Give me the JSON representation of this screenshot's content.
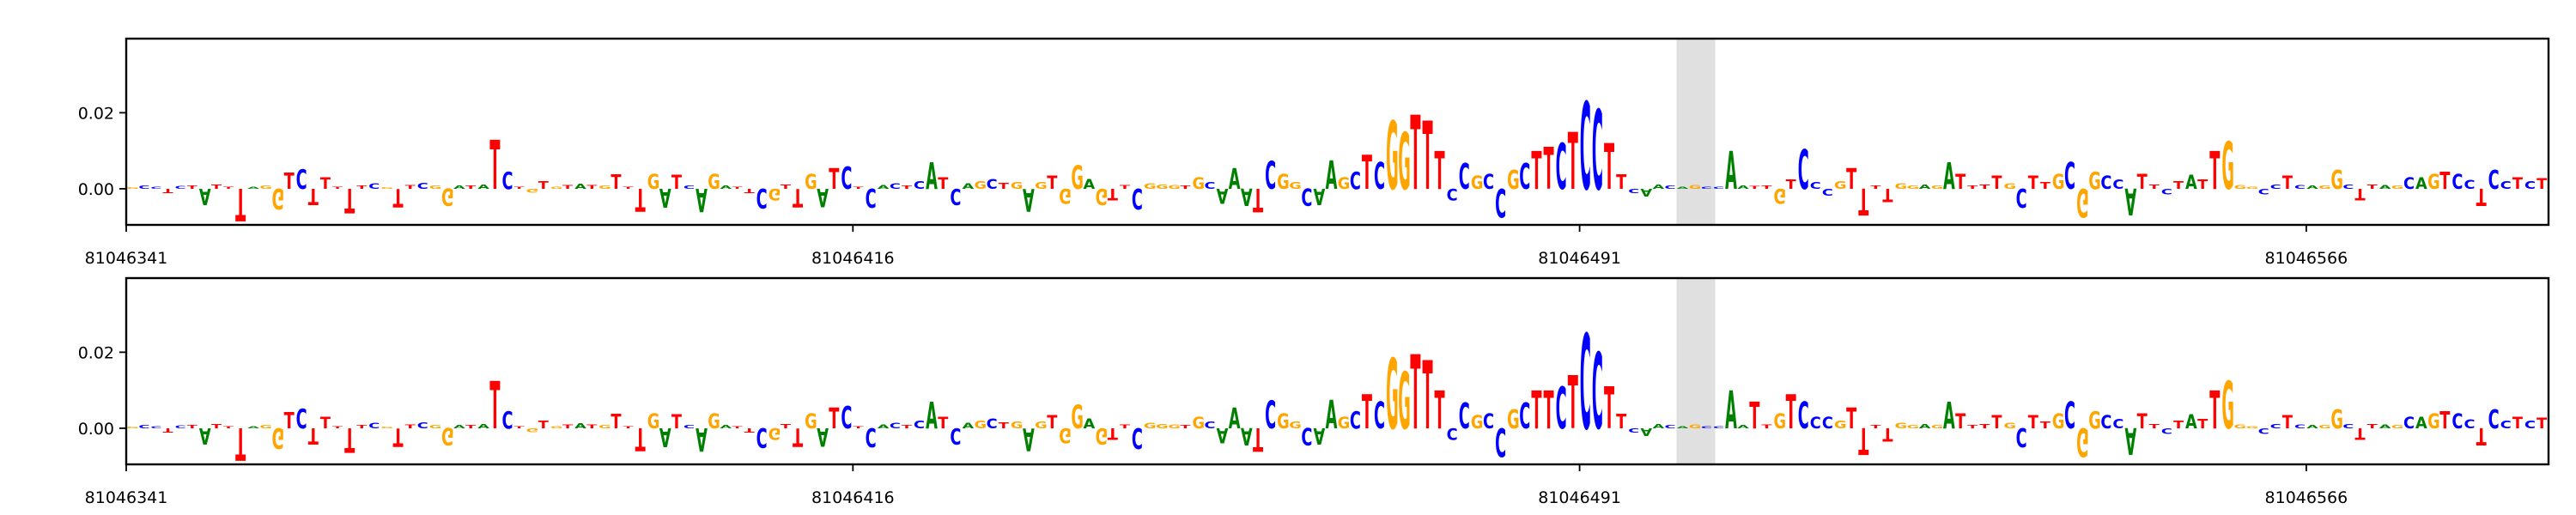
{
  "chart_data": [
    {
      "type": "sequence-logo",
      "panel": "top",
      "ylim": [
        -0.0095,
        0.0395
      ],
      "y_ticks": [
        0.0,
        0.02
      ],
      "y_tick_labels": [
        "0.00",
        "0.02"
      ],
      "x_range": [
        81046341,
        81046591
      ],
      "x_ticks": [
        81046341,
        81046416,
        81046491,
        81046566
      ],
      "x_tick_labels": [
        "81046341",
        "81046416",
        "81046491",
        "81046566"
      ],
      "highlight_range": [
        81046501,
        81046505
      ],
      "grid": false,
      "sequence": "GCCTCTATTTAGGTCTTTTTCGTTCGGATATCTGTGTATGTTTGATCAGATTCGTTGATCTCACTCATCAGCTGAGTGGAGTTCGGGTGCAAATCGGCAAGCTCGGTTTCCGCCGCTTCTCCTTCAACAGCCAATTGTCCCGTTTTGGAGATTTTGCTTGCGGCCATTCTATTGGGCCTCAGGCTTAGCAGTCCTCCTCT",
      "letter_heights": [
        0.0004,
        0.0008,
        0.0005,
        -0.0012,
        0.0007,
        0.0009,
        -0.0042,
        0.0011,
        0.0006,
        -0.0085,
        0.0006,
        0.0008,
        -0.0055,
        0.0042,
        0.0052,
        -0.0043,
        0.003,
        0.0006,
        -0.0065,
        0.0009,
        0.0014,
        0.0004,
        -0.0048,
        0.001,
        0.0016,
        0.0008,
        -0.0046,
        0.0008,
        0.0009,
        0.0012,
        0.013,
        0.0045,
        0.0006,
        -0.001,
        0.002,
        0.0006,
        0.001,
        0.0013,
        0.001,
        0.0008,
        0.0038,
        0.0006,
        -0.006,
        0.004,
        -0.005,
        0.0036,
        0.0009,
        -0.0062,
        0.004,
        0.0008,
        0.0006,
        -0.0011,
        -0.0052,
        -0.003,
        0.0012,
        -0.0048,
        0.004,
        -0.0048,
        0.0055,
        0.0058,
        0.0006,
        -0.005,
        0.001,
        0.0015,
        0.0008,
        0.0021,
        0.007,
        0.003,
        -0.0042,
        0.0015,
        0.002,
        0.0026,
        0.0016,
        0.0018,
        -0.006,
        0.0017,
        0.0035,
        -0.004,
        0.0062,
        0.0027,
        -0.0042,
        -0.003,
        0.001,
        -0.0054,
        0.0015,
        0.0012,
        0.001,
        0.0008,
        0.003,
        0.0018,
        -0.004,
        0.0054,
        -0.0045,
        -0.0062,
        0.0074,
        0.004,
        0.0017,
        -0.0046,
        -0.0043,
        0.0075,
        0.003,
        0.0045,
        0.009,
        0.007,
        0.018,
        0.015,
        0.0195,
        0.018,
        0.01,
        -0.003,
        0.0068,
        0.0035,
        0.004,
        -0.0075,
        0.005,
        0.0068,
        0.01,
        0.011,
        0.012,
        0.015,
        0.023,
        0.021,
        0.012,
        0.0038,
        -0.0011,
        -0.002,
        0.0012,
        0.0008,
        0.0006,
        0.001,
        0.0005,
        0.0006,
        0.01,
        0.0008,
        0.0007,
        0.0008,
        -0.004,
        0.0025,
        0.0105,
        0.0018,
        -0.0018,
        0.002,
        0.0055,
        -0.007,
        0.0009,
        -0.0035,
        0.0015,
        0.0008,
        0.0012,
        0.0009,
        0.007,
        0.004,
        0.0009,
        0.0012,
        0.0035,
        0.0015,
        -0.005,
        0.0035,
        0.0018,
        0.004,
        0.007,
        -0.0075,
        0.0045,
        0.0035,
        0.0025,
        -0.007,
        0.004,
        0.0012,
        -0.0015,
        0.002,
        0.0036,
        0.0025,
        0.01,
        0.0125,
        0.001,
        0.0005,
        -0.0015,
        0.0011,
        0.0035,
        0.001,
        0.0008,
        0.0009,
        0.005,
        0.0012,
        -0.003,
        0.0011,
        0.001,
        0.0008,
        0.003,
        0.003,
        0.004,
        0.0045,
        0.004,
        0.0024,
        -0.0045,
        0.005,
        0.002,
        0.003,
        0.002,
        0.0028,
        0.003,
        -0.005
      ],
      "colors": {
        "A": "#008000",
        "C": "#0000ff",
        "G": "#ffa500",
        "T": "#ff0000"
      }
    },
    {
      "type": "sequence-logo",
      "panel": "bottom",
      "ylim": [
        -0.0095,
        0.0395
      ],
      "y_ticks": [
        0.0,
        0.02
      ],
      "y_tick_labels": [
        "0.00",
        "0.02"
      ],
      "x_range": [
        81046341,
        81046591
      ],
      "x_ticks": [
        81046341,
        81046416,
        81046491,
        81046566
      ],
      "x_tick_labels": [
        "81046341",
        "81046416",
        "81046491",
        "81046566"
      ],
      "highlight_range": [
        81046501,
        81046505
      ],
      "grid": false,
      "sequence": "GCCTCTATTTAGGTCTTTTTCGTTCGGATATCTGTGTATGTTTGATCAGATTCGTTGATCTCACTCATCAGCTGAGTGGAGTTCGGGTGCAAATCGGCAAGCTCGGTTTCCGCCGCTTCTCCTTCAACAGCCAATTGTCCCGTTTTGGAGATTTTGCTTGCGGCCATTCTATTGGGCCTCAGGCTTAGCAGTCCTCCTCT",
      "letter_heights": [
        0.0004,
        0.0008,
        0.0005,
        -0.0012,
        0.0007,
        0.0009,
        -0.0042,
        0.0011,
        0.0006,
        -0.0085,
        0.0006,
        0.0008,
        -0.0055,
        0.0042,
        0.0052,
        -0.0043,
        0.003,
        0.0006,
        -0.0065,
        0.0009,
        0.0014,
        0.0004,
        -0.0048,
        0.001,
        0.0016,
        0.0008,
        -0.0046,
        0.0008,
        0.0009,
        0.0012,
        0.0125,
        0.0045,
        0.0006,
        -0.001,
        0.002,
        0.0006,
        0.001,
        0.0013,
        0.001,
        0.0008,
        0.0038,
        0.0006,
        -0.006,
        0.004,
        -0.005,
        0.0036,
        0.0009,
        -0.0062,
        0.004,
        0.0008,
        0.0006,
        -0.0011,
        -0.0052,
        -0.003,
        0.0012,
        -0.0048,
        0.004,
        -0.0048,
        0.0055,
        0.0058,
        0.0006,
        -0.005,
        0.001,
        0.0015,
        0.0008,
        0.0021,
        0.007,
        0.003,
        -0.0042,
        0.0015,
        0.002,
        0.0026,
        0.0016,
        0.0018,
        -0.006,
        0.0017,
        0.0035,
        -0.004,
        0.0062,
        0.0027,
        -0.0042,
        -0.003,
        0.001,
        -0.0054,
        0.0015,
        0.0012,
        0.001,
        0.0008,
        0.003,
        0.0018,
        -0.004,
        0.0054,
        -0.0045,
        -0.0062,
        0.0074,
        0.004,
        0.0017,
        -0.0046,
        -0.0043,
        0.0075,
        0.003,
        0.0045,
        0.009,
        0.007,
        0.0185,
        0.015,
        0.0195,
        0.018,
        0.01,
        -0.003,
        0.0068,
        0.0035,
        0.004,
        -0.0075,
        0.005,
        0.0068,
        0.01,
        0.01,
        0.011,
        0.014,
        0.025,
        0.02,
        0.011,
        0.0038,
        -0.0011,
        -0.002,
        0.0012,
        0.0008,
        0.0006,
        0.001,
        0.0005,
        0.0006,
        0.01,
        0.0008,
        0.007,
        0.001,
        0.004,
        0.009,
        0.007,
        0.003,
        0.003,
        0.002,
        0.0055,
        -0.007,
        0.0009,
        -0.0035,
        0.0015,
        0.0008,
        0.0012,
        0.0009,
        0.007,
        0.004,
        0.0009,
        0.0012,
        0.0035,
        0.0015,
        -0.005,
        0.0035,
        0.0018,
        0.004,
        0.007,
        -0.0075,
        0.0045,
        0.0035,
        0.0025,
        -0.007,
        0.004,
        0.0012,
        -0.0015,
        0.002,
        0.0036,
        0.0025,
        0.01,
        0.0125,
        0.001,
        0.0005,
        -0.0015,
        0.0011,
        0.0035,
        0.001,
        0.0008,
        0.0009,
        0.005,
        0.0012,
        -0.003,
        0.0011,
        0.001,
        0.0008,
        0.003,
        0.003,
        0.004,
        0.0045,
        0.004,
        0.0024,
        -0.0045,
        0.005,
        0.002,
        0.003,
        0.002,
        0.0028,
        0.003,
        -0.005
      ],
      "colors": {
        "A": "#008000",
        "C": "#0000ff",
        "G": "#ffa500",
        "T": "#ff0000"
      }
    }
  ]
}
